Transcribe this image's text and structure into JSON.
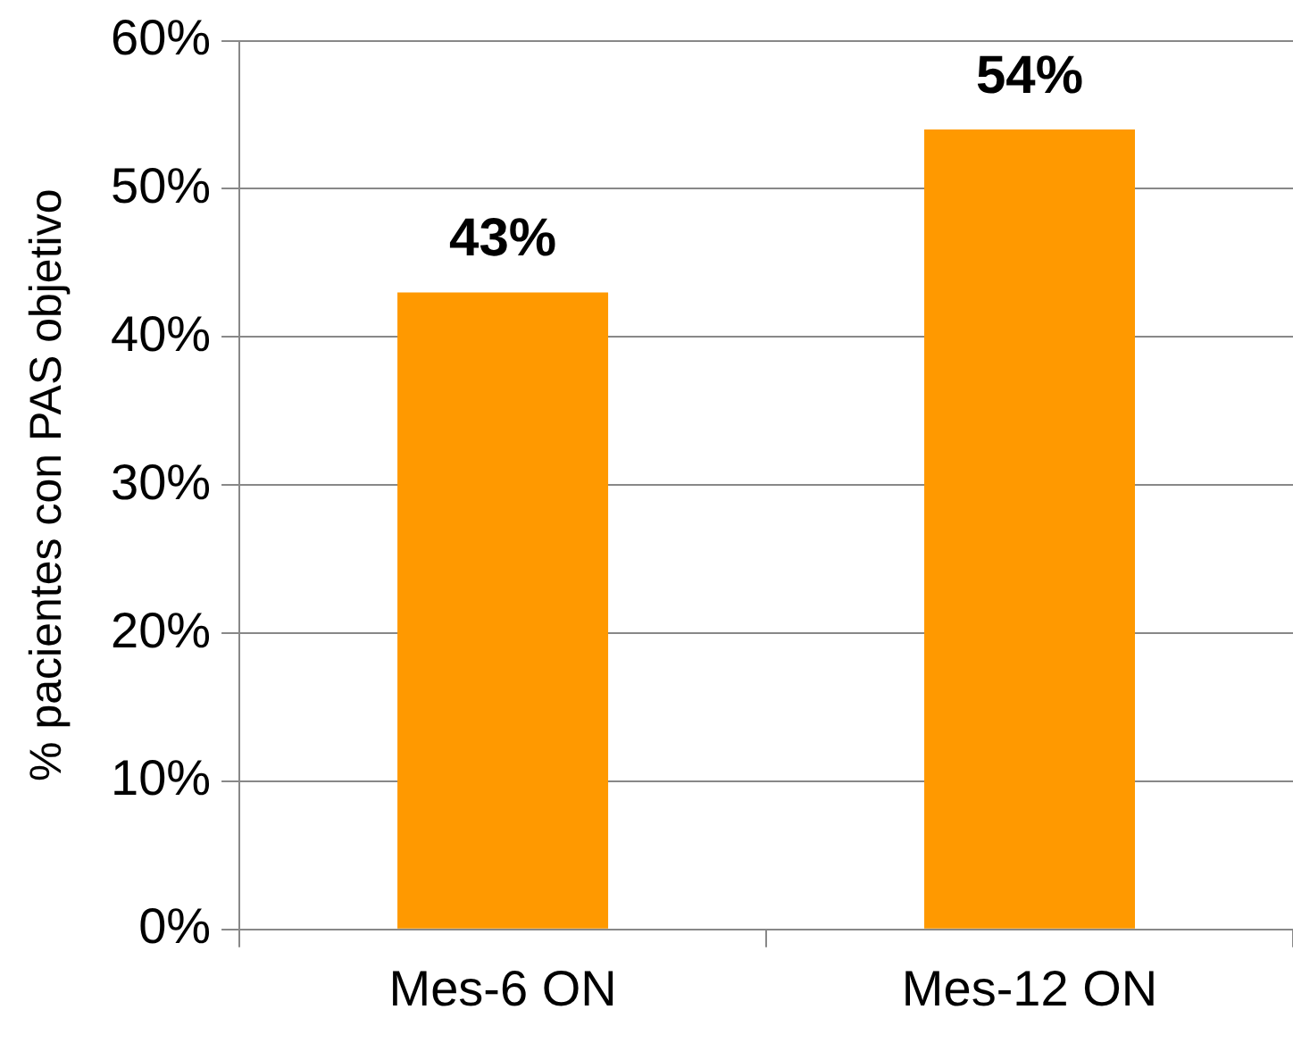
{
  "chart_data": {
    "type": "bar",
    "ylabel": "% pacientes con PAS objetivo",
    "categories": [
      "Mes-6 ON",
      "Mes-12 ON"
    ],
    "values": [
      43,
      54
    ],
    "value_labels": [
      "43%",
      "54%"
    ],
    "color": "#ff9900",
    "ylim": [
      0,
      60
    ],
    "yticks": [
      {
        "value": 0,
        "label": "0%"
      },
      {
        "value": 10,
        "label": "10%"
      },
      {
        "value": 20,
        "label": "20%"
      },
      {
        "value": 30,
        "label": "30%"
      },
      {
        "value": 40,
        "label": "40%"
      },
      {
        "value": 50,
        "label": "50%"
      },
      {
        "value": 60,
        "label": "60%"
      }
    ],
    "grid": "y",
    "legend": false
  }
}
